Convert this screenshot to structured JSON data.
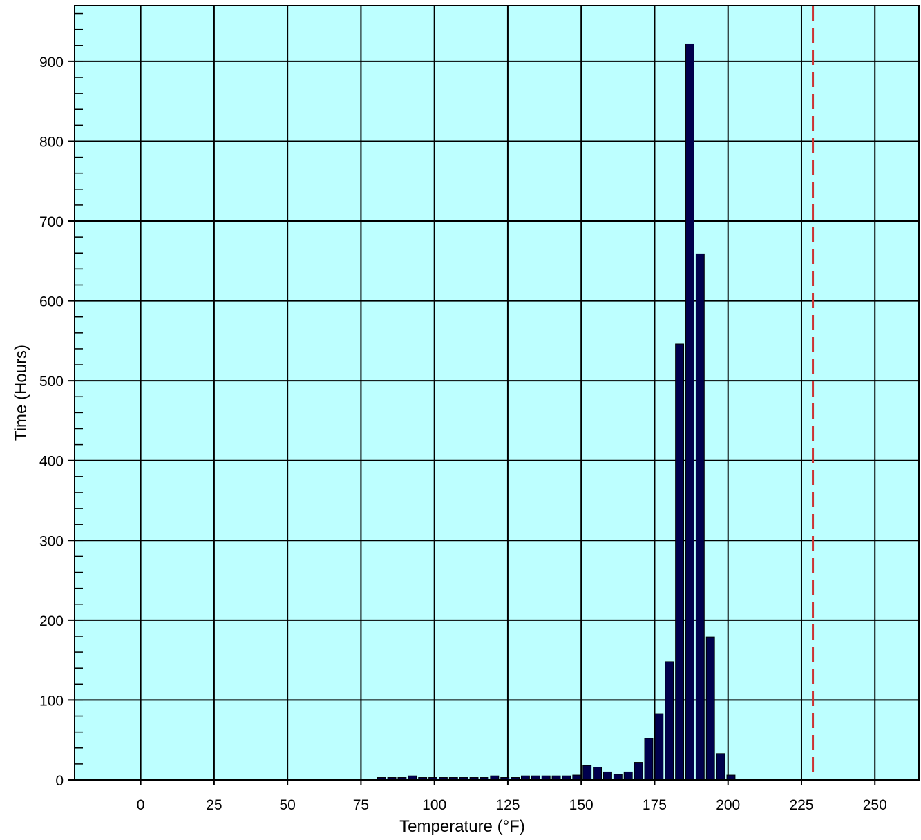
{
  "chart_data": {
    "type": "bar",
    "title": "",
    "xlabel": "Temperature (°F)",
    "ylabel": "Time (Hours)",
    "xlim": [
      -22.5,
      265
    ],
    "ylim": [
      0,
      970
    ],
    "x_ticks": [
      0,
      25,
      50,
      75,
      100,
      125,
      150,
      175,
      200,
      225,
      250
    ],
    "y_ticks": [
      0,
      100,
      200,
      300,
      400,
      500,
      600,
      700,
      800,
      900
    ],
    "x_tick_labels": [
      "0",
      "25",
      "50",
      "75",
      "100",
      "125",
      "150",
      "175",
      "200",
      "225",
      "250"
    ],
    "y_tick_labels": [
      "0",
      "100",
      "200",
      "300",
      "400",
      "500",
      "600",
      "700",
      "800",
      "900"
    ],
    "grid": true,
    "bin_width": 3.5,
    "reference_line": {
      "x": 228.9,
      "style": "dashed",
      "color": "#cc3333"
    },
    "colors": {
      "plot_background": "#bdffff",
      "bar_fill": "#00004d",
      "grid": "#000000"
    },
    "bins": [
      {
        "x": 50.5,
        "value": 1
      },
      {
        "x": 54,
        "value": 1
      },
      {
        "x": 57.5,
        "value": 1
      },
      {
        "x": 61,
        "value": 1
      },
      {
        "x": 64.5,
        "value": 1
      },
      {
        "x": 68,
        "value": 1
      },
      {
        "x": 71.5,
        "value": 1
      },
      {
        "x": 75,
        "value": 1
      },
      {
        "x": 78.5,
        "value": 1
      },
      {
        "x": 82,
        "value": 3
      },
      {
        "x": 85.5,
        "value": 3
      },
      {
        "x": 89,
        "value": 3
      },
      {
        "x": 92.5,
        "value": 5
      },
      {
        "x": 96,
        "value": 3
      },
      {
        "x": 99.5,
        "value": 3
      },
      {
        "x": 103,
        "value": 3
      },
      {
        "x": 106.5,
        "value": 3
      },
      {
        "x": 110,
        "value": 3
      },
      {
        "x": 113.5,
        "value": 3
      },
      {
        "x": 117,
        "value": 3
      },
      {
        "x": 120.5,
        "value": 5
      },
      {
        "x": 124,
        "value": 3
      },
      {
        "x": 127.5,
        "value": 3
      },
      {
        "x": 131,
        "value": 5
      },
      {
        "x": 134.5,
        "value": 5
      },
      {
        "x": 138,
        "value": 5
      },
      {
        "x": 141.5,
        "value": 5
      },
      {
        "x": 145,
        "value": 5
      },
      {
        "x": 148.5,
        "value": 6
      },
      {
        "x": 152,
        "value": 18
      },
      {
        "x": 155.5,
        "value": 16
      },
      {
        "x": 159,
        "value": 10
      },
      {
        "x": 162.5,
        "value": 7
      },
      {
        "x": 166,
        "value": 10
      },
      {
        "x": 169.5,
        "value": 22
      },
      {
        "x": 173,
        "value": 52
      },
      {
        "x": 176.5,
        "value": 83
      },
      {
        "x": 180,
        "value": 148
      },
      {
        "x": 183.5,
        "value": 546
      },
      {
        "x": 187,
        "value": 922
      },
      {
        "x": 190.5,
        "value": 659
      },
      {
        "x": 194,
        "value": 179
      },
      {
        "x": 197.5,
        "value": 33
      },
      {
        "x": 201,
        "value": 6
      },
      {
        "x": 204.5,
        "value": 1
      },
      {
        "x": 208,
        "value": 1
      },
      {
        "x": 211.5,
        "value": 1
      }
    ]
  }
}
